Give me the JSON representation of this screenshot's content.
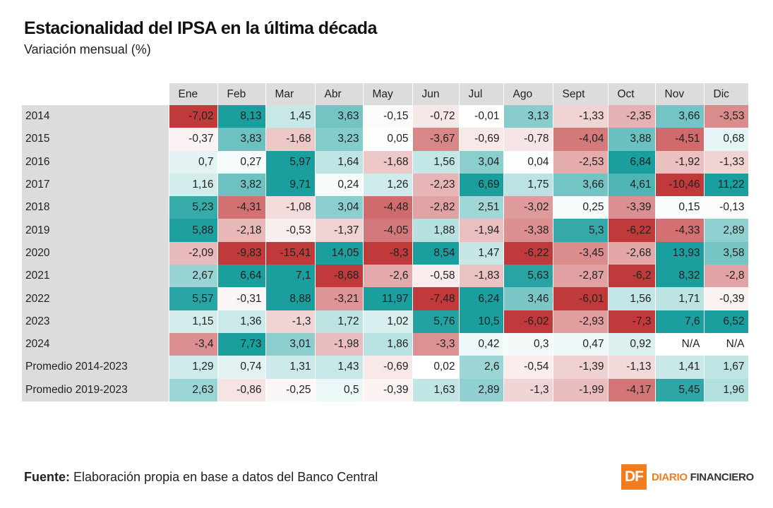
{
  "header": {
    "title": "Estacionalidad del IPSA en la última década",
    "subtitle": "Variación mensual (%)"
  },
  "chart_data": {
    "type": "heatmap",
    "title": "Estacionalidad del IPSA en la última década",
    "subtitle": "Variación mensual (%)",
    "columns": [
      "Ene",
      "Feb",
      "Mar",
      "Abr",
      "May",
      "Jun",
      "Jul",
      "Ago",
      "Sept",
      "Oct",
      "Nov",
      "Dic"
    ],
    "rows": [
      {
        "label": "2014",
        "values": [
          "-7,02",
          "8,13",
          "1,45",
          "3,63",
          "-0,15",
          "-0,72",
          "-0,01",
          "3,13",
          "-1,33",
          "-2,35",
          "3,66",
          "-3,53"
        ]
      },
      {
        "label": "2015",
        "values": [
          "-0,37",
          "3,83",
          "-1,68",
          "3,23",
          "0,05",
          "-3,67",
          "-0,69",
          "-0,78",
          "-4,04",
          "3,88",
          "-4,51",
          "0,68"
        ]
      },
      {
        "label": "2016",
        "values": [
          "0,7",
          "0,27",
          "5,97",
          "1,64",
          "-1,68",
          "1,56",
          "3,04",
          "0,04",
          "-2,53",
          "6,84",
          "-1,92",
          "-1,33"
        ]
      },
      {
        "label": "2017",
        "values": [
          "1,16",
          "3,82",
          "9,71",
          "0,24",
          "1,26",
          "-2,23",
          "6,69",
          "1,75",
          "3,66",
          "4,61",
          "-10,46",
          "11,22"
        ]
      },
      {
        "label": "2018",
        "values": [
          "5,23",
          "-4,31",
          "-1,08",
          "3,04",
          "-4,48",
          "-2,82",
          "2,51",
          "-3,02",
          "0,25",
          "-3,39",
          "0,15",
          "-0,13"
        ]
      },
      {
        "label": "2019",
        "values": [
          "5,88",
          "-2,18",
          "-0,53",
          "-1,37",
          "-4,05",
          "1,88",
          "-1,94",
          "-3,38",
          "5,3",
          "-6,22",
          "-4,33",
          "2,89"
        ]
      },
      {
        "label": "2020",
        "values": [
          "-2,09",
          "-9,83",
          "-15,41",
          "14,05",
          "-8,3",
          "8,54",
          "1,47",
          "-6,22",
          "-3,45",
          "-2,68",
          "13,93",
          "3,58"
        ]
      },
      {
        "label": "2021",
        "values": [
          "2,67",
          "6,64",
          "7,1",
          "-8,68",
          "-2,6",
          "-0,58",
          "-1,83",
          "5,63",
          "-2,87",
          "-6,2",
          "8,32",
          "-2,8"
        ]
      },
      {
        "label": "2022",
        "values": [
          "5,57",
          "-0,31",
          "8,88",
          "-3,21",
          "11,97",
          "-7,48",
          "6,24",
          "3,46",
          "-6,01",
          "1,56",
          "1,71",
          "-0,39"
        ]
      },
      {
        "label": "2023",
        "values": [
          "1,15",
          "1,36",
          "-1,3",
          "1,72",
          "1,02",
          "5,76",
          "10,5",
          "-6,02",
          "-2,93",
          "-7,3",
          "7,6",
          "6,52"
        ]
      },
      {
        "label": "2024",
        "values": [
          "-3,4",
          "7,73",
          "3,01",
          "-1,98",
          "1,86",
          "-3,3",
          "0,42",
          "0,3",
          "0,47",
          "0,92",
          "N/A",
          "N/A"
        ]
      },
      {
        "label": "Promedio 2014-2023",
        "values": [
          "1,29",
          "0,74",
          "1,31",
          "1,43",
          "-0,69",
          "0,02",
          "2,6",
          "-0,54",
          "-1,39",
          "-1,13",
          "1,41",
          "1,67"
        ]
      },
      {
        "label": "Promedio 2019-2023",
        "values": [
          "2,63",
          "-0,86",
          "-0,25",
          "0,5",
          "-0,39",
          "1,63",
          "2,89",
          "-1,3",
          "-1,99",
          "-4,17",
          "5,45",
          "1,96"
        ]
      }
    ],
    "colors": {
      "positive": "#1a9e9e",
      "negative": "#c0393b",
      "neutral": "#ffffff",
      "saturation_value": 6
    }
  },
  "footer": {
    "source_label": "Fuente:",
    "source_text": " Elaboración propia en base a datos del Banco Central",
    "logo_mark": "DF",
    "logo_word1": "DIARIO",
    "logo_word2": "FINANCIERO"
  }
}
